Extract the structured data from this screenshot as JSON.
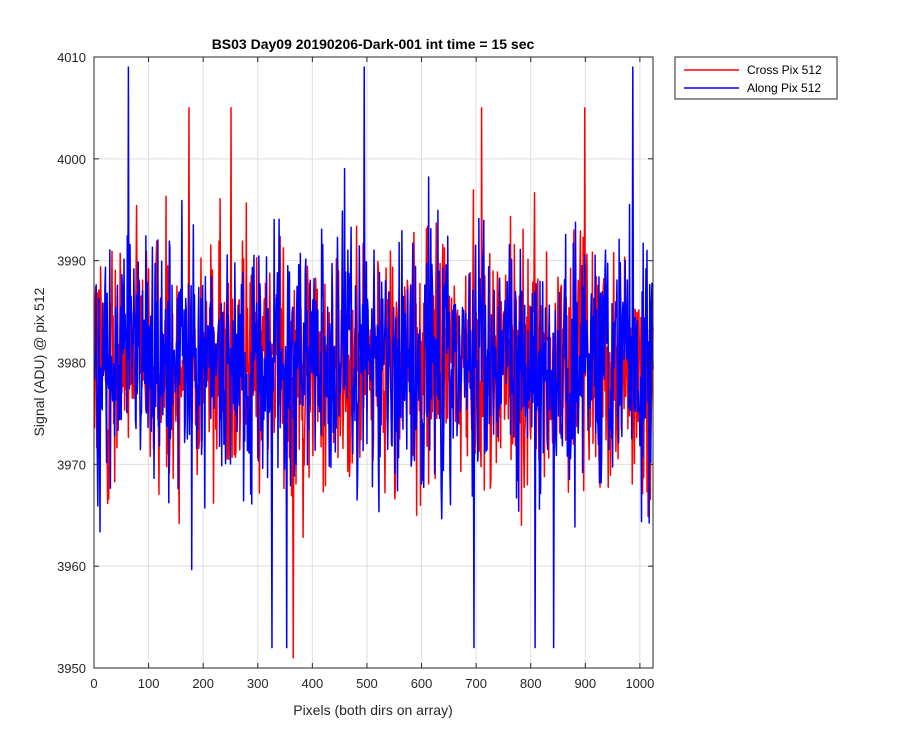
{
  "chart_data": {
    "type": "line",
    "title": "BS03 Day09 20190206-Dark-001 int time = 15 sec",
    "xlabel": "Pixels (both dirs on array)",
    "ylabel": "Signal (ADU) @ pix 512",
    "xlim": [
      0,
      1024
    ],
    "ylim": [
      3950,
      4010
    ],
    "xticks": [
      0,
      100,
      200,
      300,
      400,
      500,
      600,
      700,
      800,
      900,
      1000
    ],
    "yticks": [
      3950,
      3960,
      3970,
      3980,
      3990,
      4000,
      4010
    ],
    "grid": true,
    "legend_position": "outside top-right",
    "series": [
      {
        "name": "Cross Pix 512",
        "color": "#ff0000",
        "x_start": 1,
        "x_step": 1,
        "approx_mean": 3980,
        "approx_std": 6,
        "approx_min": 3951,
        "approx_max": 4005
      },
      {
        "name": "Along Pix 512",
        "color": "#0000ff",
        "x_start": 1,
        "x_step": 1,
        "approx_mean": 3980,
        "approx_std": 6,
        "approx_min": 3952,
        "approx_max": 4009
      }
    ]
  }
}
